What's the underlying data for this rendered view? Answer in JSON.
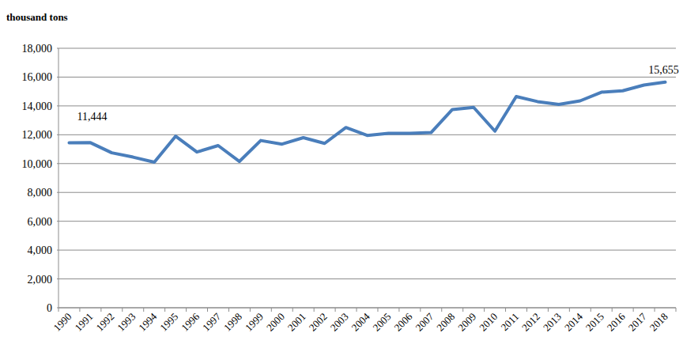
{
  "chart_data": {
    "type": "line",
    "y_label": "thousand tons",
    "categories": [
      "1990",
      "1991",
      "1992",
      "1993",
      "1994",
      "1995",
      "1996",
      "1997",
      "1998",
      "1999",
      "2000",
      "2001",
      "2002",
      "2003",
      "2004",
      "2005",
      "2006",
      "2007",
      "2008",
      "2009",
      "2010",
      "2011",
      "2012",
      "2013",
      "2014",
      "2015",
      "2016",
      "2017",
      "2018"
    ],
    "values": [
      11444,
      11450,
      10750,
      10450,
      10100,
      11900,
      10800,
      11250,
      10150,
      11600,
      11350,
      11800,
      11400,
      12500,
      11950,
      12100,
      12100,
      12150,
      13750,
      13900,
      12250,
      14650,
      14300,
      14100,
      14350,
      14950,
      15050,
      15450,
      15655
    ],
    "color": "#4a7ebb",
    "ylim": [
      0,
      18000
    ],
    "yticks": [
      0,
      {
        "value": 2000,
        "label": "2,000"
      },
      {
        "value": 4000,
        "label": "4,000"
      },
      {
        "value": 6000,
        "label": "6,000"
      },
      {
        "value": 8000,
        "label": "8,000"
      },
      {
        "value": 10000,
        "label": "10,000"
      },
      {
        "value": 12000,
        "label": "12,000"
      },
      {
        "value": 14000,
        "label": "14,000"
      },
      {
        "value": 16000,
        "label": "16,000"
      },
      {
        "value": 18000,
        "label": "18,000"
      }
    ],
    "grid": true,
    "annotations": [
      {
        "category": "1990",
        "text": "11,444"
      },
      {
        "category": "2018",
        "text": "15,655"
      }
    ]
  }
}
